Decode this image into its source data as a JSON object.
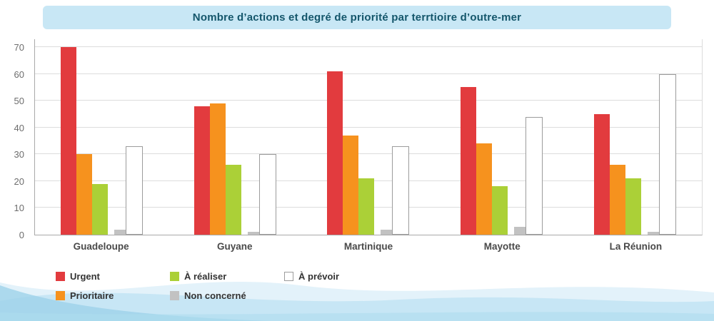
{
  "title": "Nombre d’actions et degré de priorité par terrtioire d’outre-mer",
  "chart_data": {
    "type": "bar",
    "title": "Nombre d’actions et degré de priorité par terrtioire d’outre-mer",
    "categories": [
      "Guadeloupe",
      "Guyane",
      "Martinique",
      "Mayotte",
      "La Réunion"
    ],
    "series": [
      {
        "name": "Urgent",
        "slug": "urgent",
        "color": "#e23b3e",
        "values": [
          70,
          48,
          61,
          55,
          45
        ]
      },
      {
        "name": "Prioritaire",
        "slug": "prioritaire",
        "color": "#f6921e",
        "values": [
          30,
          49,
          37,
          34,
          26
        ]
      },
      {
        "name": "À réaliser",
        "slug": "a-realiser",
        "color": "#abd037",
        "values": [
          19,
          26,
          21,
          18,
          21
        ]
      },
      {
        "name": "Non concerné",
        "slug": "non-concerne",
        "color": "#c2c2c2",
        "values": [
          2,
          1,
          2,
          3,
          1
        ]
      },
      {
        "name": "À prévoir",
        "slug": "a-prevoir",
        "color": "#ffffff",
        "border_color": "#9c9c9c",
        "values": [
          33,
          30,
          33,
          44,
          60
        ]
      }
    ],
    "xlabel": "",
    "ylabel": "",
    "ylim": [
      0,
      70
    ],
    "yticks": [
      0,
      10,
      20,
      30,
      40,
      50,
      60,
      70
    ],
    "grid": true,
    "legend_position": "bottom",
    "legend_columns": [
      [
        0,
        1
      ],
      [
        2,
        3
      ],
      [
        4
      ]
    ]
  },
  "colors": {
    "title_bg": "#c8e7f5",
    "title_text": "#14566b",
    "gridline": "#dcdcdc",
    "axis": "#a9a9a9",
    "wave_light": "#e3f2fa",
    "wave_mid": "#c2e4f3",
    "wave_dark": "#9ed2ea"
  }
}
